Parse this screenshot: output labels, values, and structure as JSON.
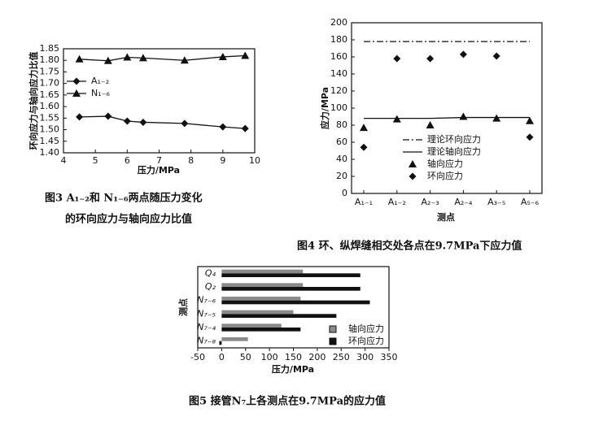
{
  "chart_data": [
    {
      "type": "line",
      "x_label": "压力/MPa",
      "y_label": "环向应力与轴向应力比值",
      "caption": [
        "图3  A₁₋₂和 N₁₋₆两点随压力变化",
        "的环向应力与轴向应力比值"
      ],
      "x": [
        4.5,
        5.4,
        6,
        6.5,
        7.8,
        9,
        9.7
      ],
      "series": [
        {
          "name": "A₁₋₂",
          "color": "#111111",
          "marker": "diamond",
          "linestyle": "solid",
          "values": [
            1.555,
            1.558,
            1.537,
            1.532,
            1.527,
            1.512,
            1.505
          ]
        },
        {
          "name": "N₁₋₆",
          "color": "#111111",
          "marker": "triangle",
          "linestyle": "solid",
          "values": [
            1.805,
            1.798,
            1.813,
            1.81,
            1.8,
            1.815,
            1.82
          ]
        }
      ],
      "xlim": [
        4,
        10
      ],
      "xticks": [
        4,
        5,
        6,
        7,
        8,
        9,
        10
      ],
      "ylim": [
        1.4,
        1.85
      ],
      "yticks": [
        {
          "value": 1.4,
          "label": "1.40"
        },
        {
          "value": 1.45,
          "label": "1.45"
        },
        {
          "value": 1.5,
          "label": "1.50"
        },
        {
          "value": 1.55,
          "label": "1.55"
        },
        {
          "value": 1.6,
          "label": "1.60"
        },
        {
          "value": 1.65,
          "label": "1.65"
        },
        {
          "value": 1.7,
          "label": "1.70"
        },
        {
          "value": 1.75,
          "label": "1.75"
        },
        {
          "value": 1.8,
          "label": "1.80"
        },
        {
          "value": 1.85,
          "label": "1.85"
        }
      ],
      "legend": "upper left"
    },
    {
      "type": "line",
      "x_label": "测点",
      "y_label": "应力/MPa",
      "caption": [
        "图4  环、纵焊缝相交处各点在9.7MPa下应力值"
      ],
      "categories": [
        "A₁₋₁",
        "A₁₋₂",
        "A₂₋₃",
        "A₂₋₄",
        "A₃₋₅",
        "A₅₋₆"
      ],
      "series": [
        {
          "name": "理论环向应力",
          "color": "#111111",
          "marker": "none",
          "linestyle": "dashdot",
          "values": [
            178,
            178,
            178,
            178,
            178,
            178
          ]
        },
        {
          "name": "理论轴向应力",
          "color": "#111111",
          "marker": "none",
          "linestyle": "solid",
          "values": [
            88,
            88,
            88,
            89,
            89,
            89
          ]
        },
        {
          "name": "轴向应力",
          "color": "#111111",
          "marker": "triangle",
          "linestyle": "none",
          "values": [
            77,
            87,
            80,
            90,
            88,
            85
          ]
        },
        {
          "name": "环向应力",
          "color": "#111111",
          "marker": "diamond",
          "linestyle": "none",
          "values": [
            54,
            158,
            158,
            163,
            161,
            66
          ]
        }
      ],
      "ylim": [
        0,
        200
      ],
      "yticks": [
        0,
        20,
        40,
        60,
        80,
        100,
        120,
        140,
        160,
        180,
        200
      ],
      "legend": "lower center"
    },
    {
      "type": "bar",
      "orientation": "horizontal",
      "x_label": "压力/MPa",
      "y_label": "测点",
      "caption": [
        "图5  接管N₇上各测点在9.7MPa的应力值"
      ],
      "categories": [
        "Q₄",
        "Q₂",
        "N₇₋₆",
        "N₇₋₅",
        "N₇₋₄",
        "N₇₋₈"
      ],
      "series": [
        {
          "name": "轴向应力",
          "color": "#8a8a8a",
          "values": [
            170,
            170,
            165,
            150,
            125,
            55
          ]
        },
        {
          "name": "环向应力",
          "color": "#111111",
          "values": [
            290,
            290,
            310,
            240,
            165,
            -5
          ]
        }
      ],
      "xlim": [
        -50,
        350
      ],
      "xticks": [
        -50,
        0,
        50,
        100,
        150,
        200,
        250,
        300,
        350
      ],
      "legend": "lower right"
    }
  ]
}
